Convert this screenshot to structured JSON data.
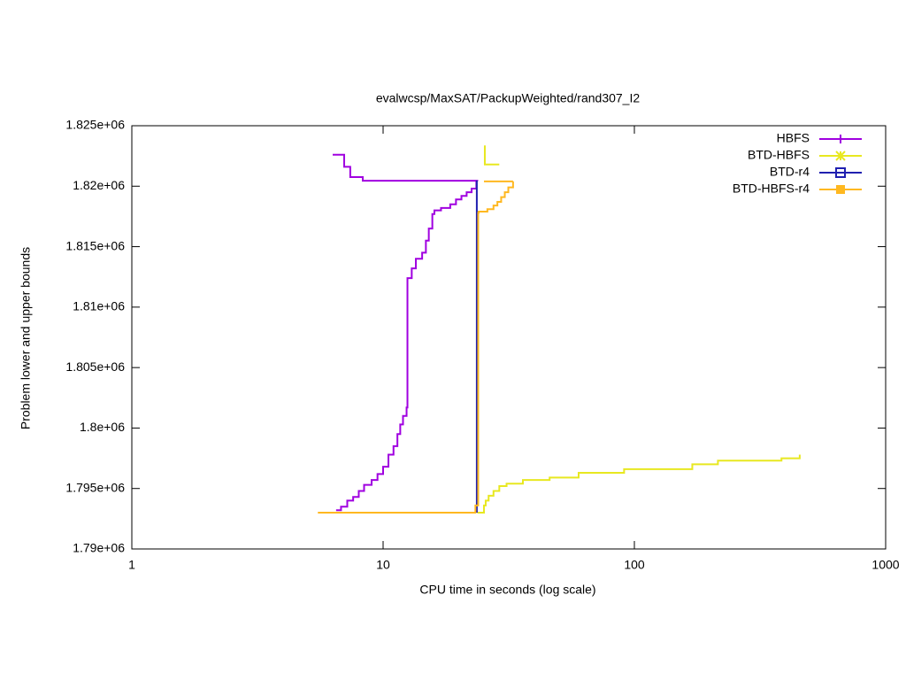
{
  "chart_data": {
    "type": "line",
    "title": "evalwcsp/MaxSAT/PackupWeighted/rand307_I2",
    "x_label": "CPU time in seconds (log scale)",
    "y_label": "Problem lower and upper bounds",
    "xlog": true,
    "steps": true,
    "grid": false,
    "legend": "top-right",
    "xlim": [
      1,
      1000
    ],
    "xticks": [
      1,
      10,
      100,
      1000
    ],
    "ylim": [
      1790000,
      1825000
    ],
    "yticks": [
      {
        "value": 1790000,
        "label": "1.79e+06"
      },
      {
        "value": 1795000,
        "label": "1.795e+06"
      },
      {
        "value": 1800000,
        "label": "1.8e+06"
      },
      {
        "value": 1805000,
        "label": "1.805e+06"
      },
      {
        "value": 1810000,
        "label": "1.81e+06"
      },
      {
        "value": 1815000,
        "label": "1.815e+06"
      },
      {
        "value": 1820000,
        "label": "1.82e+06"
      },
      {
        "value": 1825000,
        "label": "1.825e+06"
      }
    ],
    "series": [
      {
        "name": "HBFS",
        "color": "#a000e0",
        "marker": "plus",
        "x": [
          6.3,
          7.0,
          7.4,
          8.3,
          23.7,
          null,
          6.5,
          6.8,
          7.2,
          7.6,
          8.0,
          8.4,
          9.0,
          9.5,
          10,
          10.5,
          11,
          11.4,
          11.7,
          12.0,
          12.4,
          12.5,
          13.0,
          13.5,
          14.3,
          14.8,
          15.2,
          15.7,
          16,
          17,
          18.5,
          19.5,
          20.5,
          21.5,
          22.5,
          23.5
        ],
        "values": [
          1822600,
          1821600,
          1820750,
          1820450,
          1820400,
          null,
          1793200,
          1793500,
          1794000,
          1794300,
          1794800,
          1795300,
          1795700,
          1796200,
          1796800,
          1797800,
          1798500,
          1799500,
          1800300,
          1801000,
          1801700,
          1812400,
          1813200,
          1814000,
          1814500,
          1815500,
          1816500,
          1817700,
          1818000,
          1818200,
          1818500,
          1818900,
          1819200,
          1819500,
          1819800,
          1820400
        ]
      },
      {
        "name": "BTD-HBFS",
        "color": "#e8e820",
        "marker": "star",
        "x": [
          25.2,
          25.4,
          29.0,
          null,
          23.7,
          25.2,
          25.6,
          26.3,
          27.5,
          29,
          31,
          36,
          46,
          60,
          91,
          170,
          215,
          385,
          455
        ],
        "values": [
          1823300,
          1821800,
          1821800,
          null,
          1793000,
          1793600,
          1794000,
          1794400,
          1794800,
          1795200,
          1795400,
          1795700,
          1795900,
          1796300,
          1796600,
          1797000,
          1797300,
          1797500,
          1797800
        ]
      },
      {
        "name": "BTD-r4",
        "color": "#2020b0",
        "marker": "square-open",
        "x": [
          23.4,
          23.6
        ],
        "values": [
          1820400,
          1793000
        ]
      },
      {
        "name": "BTD-HBFS-r4",
        "color": "#ffb820",
        "marker": "square",
        "x": [
          5.5,
          23.3,
          23.9,
          24,
          26,
          27.5,
          28.5,
          29.5,
          30.5,
          31.5,
          32.9,
          null,
          25.2,
          32.9
        ],
        "values": [
          1793000,
          1793600,
          1817800,
          1817900,
          1818100,
          1818400,
          1818700,
          1819100,
          1819500,
          1819900,
          1820400,
          null,
          1820400,
          1820400
        ]
      }
    ]
  }
}
